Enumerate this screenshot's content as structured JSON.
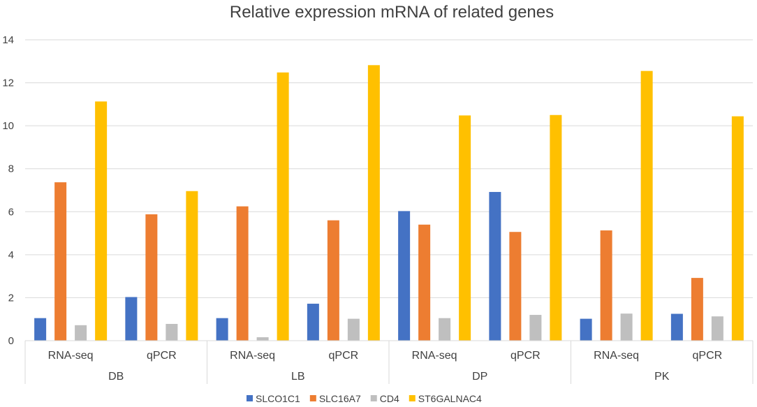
{
  "chart_data": {
    "type": "bar",
    "title": "Relative expression mRNA of related genes",
    "xlabel": "",
    "ylabel": "",
    "ylim": [
      0,
      14
    ],
    "yticks": [
      0,
      2,
      4,
      6,
      8,
      10,
      12,
      14
    ],
    "grid": true,
    "legend_position": "bottom",
    "groups": [
      "DB",
      "LB",
      "DP",
      "PK"
    ],
    "categories": [
      "RNA-seq",
      "qPCR",
      "RNA-seq",
      "qPCR",
      "RNA-seq",
      "qPCR",
      "RNA-seq",
      "qPCR"
    ],
    "series": [
      {
        "name": "SLCO1C1",
        "color": "#4472C4",
        "values": [
          1.05,
          2.03,
          1.05,
          1.72,
          6.03,
          6.92,
          1.02,
          1.25
        ]
      },
      {
        "name": "SLC16A7",
        "color": "#ED7D31",
        "values": [
          7.37,
          5.88,
          6.25,
          5.6,
          5.4,
          5.06,
          5.13,
          2.92
        ]
      },
      {
        "name": "CD4",
        "color": "#BFBFBF",
        "values": [
          0.72,
          0.78,
          0.16,
          1.02,
          1.05,
          1.2,
          1.26,
          1.13
        ]
      },
      {
        "name": "ST6GALNAC4",
        "color": "#FFC000",
        "values": [
          11.13,
          6.96,
          12.48,
          12.82,
          10.48,
          10.5,
          12.55,
          10.44
        ]
      }
    ]
  }
}
